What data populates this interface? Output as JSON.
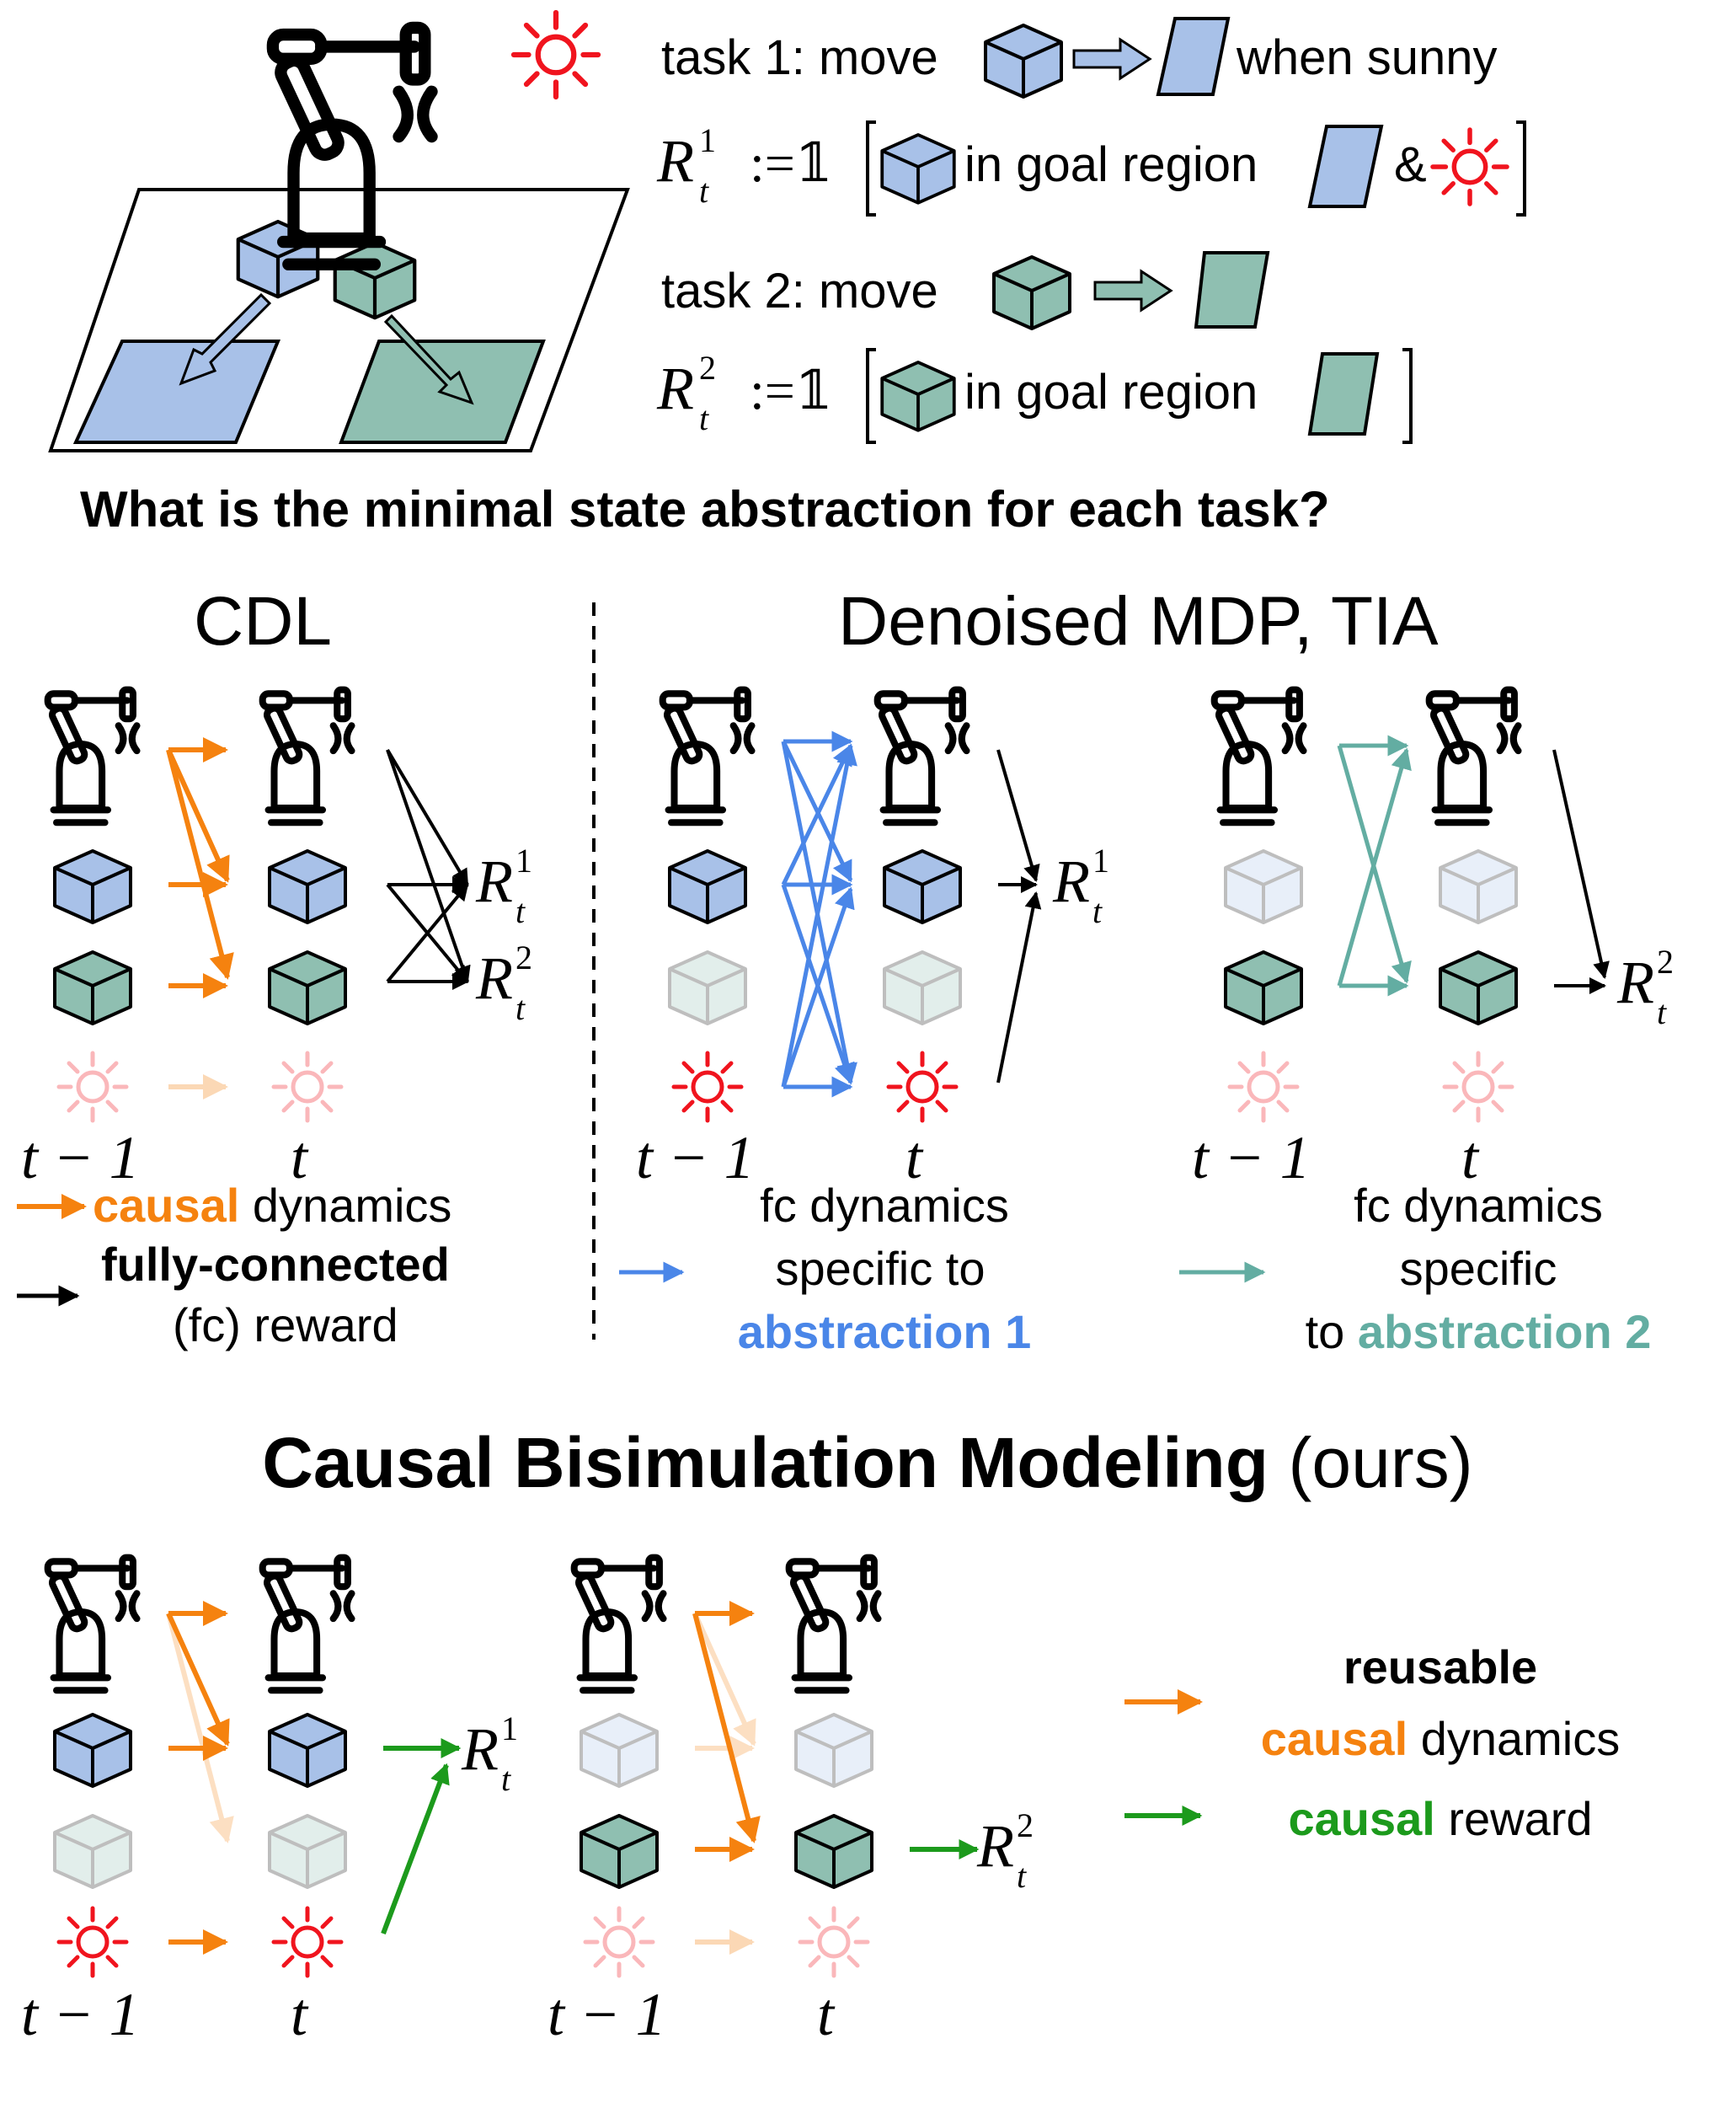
{
  "colors": {
    "blue_cube": "#a8c1e8",
    "green_cube": "#8fbfb1",
    "sun": "#f0141e",
    "orange": "#f5820f",
    "black": "#000000",
    "fc_blue": "#4a86e8",
    "fc_teal": "#63ada2",
    "causal_green": "#1c9a1c"
  },
  "top": {
    "task1": {
      "prefix": "task 1: move",
      "suffix": "when sunny"
    },
    "reward1": {
      "symbol": "R",
      "sup": "1",
      "sub": "t",
      "assign": ":=𝟙",
      "text": "in goal region",
      "amp": "&"
    },
    "task2": {
      "prefix": "task 2: move"
    },
    "reward2": {
      "symbol": "R",
      "sup": "2",
      "sub": "t",
      "assign": ":=𝟙",
      "text": "in goal region"
    },
    "question": "What is the minimal state abstraction for each task?"
  },
  "cdl": {
    "title": "CDL",
    "time_prev": "t − 1",
    "time_now": "t",
    "reward_labels": [
      {
        "sup": "1",
        "sub": "t"
      },
      {
        "sup": "2",
        "sub": "t"
      }
    ],
    "legend": {
      "line1_bold": "causal",
      "line1_rest": "dynamics",
      "line2_bold": "fully-connected",
      "line3": "(fc) reward"
    }
  },
  "denoised": {
    "title": "Denoised MDP, TIA",
    "time_prev": "t − 1",
    "time_now": "t",
    "legend1": {
      "line1": "fc dynamics",
      "line2": "specific to",
      "line3": "abstraction 1"
    },
    "legend2": {
      "line1": "fc dynamics",
      "line2": "specific",
      "line3_prefix": "to",
      "line3_bold": "abstraction 2"
    }
  },
  "cbm": {
    "title_bold": "Causal Bisimulation Modeling",
    "title_rest": "(ours)",
    "time_prev": "t − 1",
    "time_now": "t",
    "legend": {
      "reusable": "reusable",
      "causal_dyn_bold": "causal",
      "causal_dyn_rest": "dynamics",
      "causal_rew_bold": "causal",
      "causal_rew_rest": "reward"
    }
  },
  "icons": [
    "robot-arm-icon",
    "blue-cube-icon",
    "green-cube-icon",
    "sun-icon",
    "goal-region-icon",
    "hollow-arrow-icon"
  ]
}
